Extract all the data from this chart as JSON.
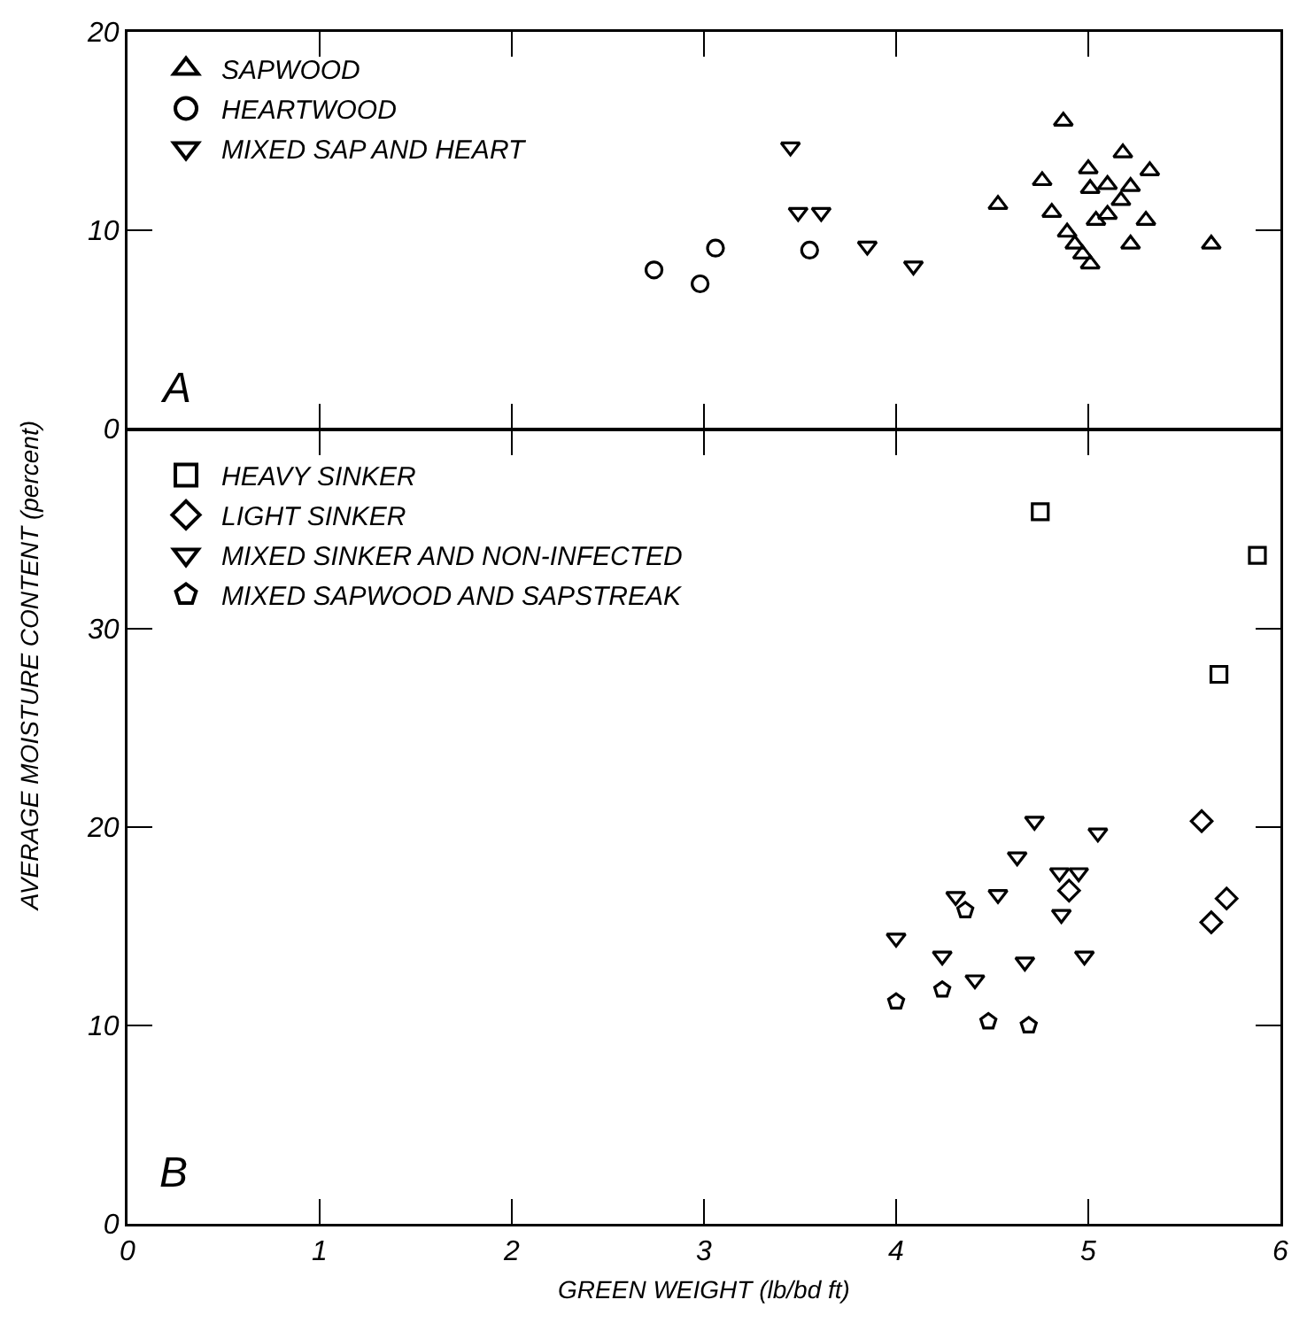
{
  "chart_data": [
    {
      "type": "scatter",
      "xlim": [
        0,
        6
      ],
      "xticks": [
        0,
        1,
        2,
        3,
        4,
        5,
        6
      ],
      "ylim": [
        0,
        20
      ],
      "yticks": [
        0,
        10,
        20
      ],
      "tick_labels": "y",
      "grid": false,
      "legend": "top left",
      "annotations": [
        "A"
      ],
      "series": [
        {
          "name": "SAPWOOD",
          "color": "#000000",
          "marker": "triangle",
          "x": [
            4.53,
            4.76,
            5.0,
            5.01,
            5.1,
            5.22,
            5.32,
            5.17,
            5.1,
            5.04,
            4.81,
            5.3,
            4.89,
            4.93,
            4.97,
            5.01,
            5.22,
            5.64,
            4.87,
            5.18
          ],
          "values": [
            11.3,
            12.5,
            13.1,
            12.1,
            12.3,
            12.2,
            13.0,
            11.5,
            10.8,
            10.5,
            10.9,
            10.5,
            9.9,
            9.3,
            8.8,
            8.3,
            9.3,
            9.3,
            15.5,
            13.9
          ]
        },
        {
          "name": "HEARTWOOD",
          "color": "#000000",
          "marker": "circle",
          "x": [
            2.74,
            2.98,
            3.06,
            3.55
          ],
          "values": [
            8.0,
            7.3,
            9.1,
            9.0
          ]
        },
        {
          "name": "MIXED SAP AND HEART",
          "color": "#000000",
          "marker": "triangle-down",
          "x": [
            3.45,
            3.49,
            3.61,
            3.85,
            4.09
          ],
          "values": [
            14.2,
            10.9,
            10.9,
            9.2,
            8.2
          ]
        }
      ]
    },
    {
      "type": "scatter",
      "xlabel": "GREEN WEIGHT (lb/bd ft)",
      "ylabel": "AVERAGE MOISTURE CONTENT (percent)",
      "xlim": [
        0,
        6
      ],
      "xticks": [
        0,
        1,
        2,
        3,
        4,
        5,
        6
      ],
      "ylim": [
        0,
        40
      ],
      "yticks": [
        0,
        10,
        20,
        30
      ],
      "grid": false,
      "legend": "top left",
      "annotations": [
        "B"
      ],
      "series": [
        {
          "name": "HEAVY SINKER",
          "color": "#000000",
          "marker": "square",
          "x": [
            4.75,
            5.88,
            5.68
          ],
          "values": [
            35.9,
            33.7,
            27.7
          ]
        },
        {
          "name": "LIGHT SINKER",
          "color": "#000000",
          "marker": "diamond",
          "x": [
            5.59,
            5.72,
            5.64,
            4.9
          ],
          "values": [
            20.3,
            16.4,
            15.2,
            16.8
          ]
        },
        {
          "name": "MIXED SINKER AND NON-INFECTED",
          "color": "#000000",
          "marker": "triangle-down",
          "x": [
            4.72,
            5.05,
            4.63,
            4.85,
            4.95,
            4.86,
            4.53,
            4.31,
            4.0,
            4.24,
            4.67,
            4.98,
            4.41
          ],
          "values": [
            20.3,
            19.7,
            18.5,
            17.7,
            17.7,
            15.6,
            16.6,
            16.5,
            14.4,
            13.5,
            13.2,
            13.5,
            12.3
          ]
        },
        {
          "name": "MIXED SAPWOOD AND SAPSTREAK",
          "color": "#000000",
          "x": [
            4.36,
            4.0,
            4.24,
            4.48,
            4.69
          ],
          "values": [
            15.8,
            11.2,
            11.8,
            10.2,
            10.0
          ]
        }
      ]
    }
  ]
}
